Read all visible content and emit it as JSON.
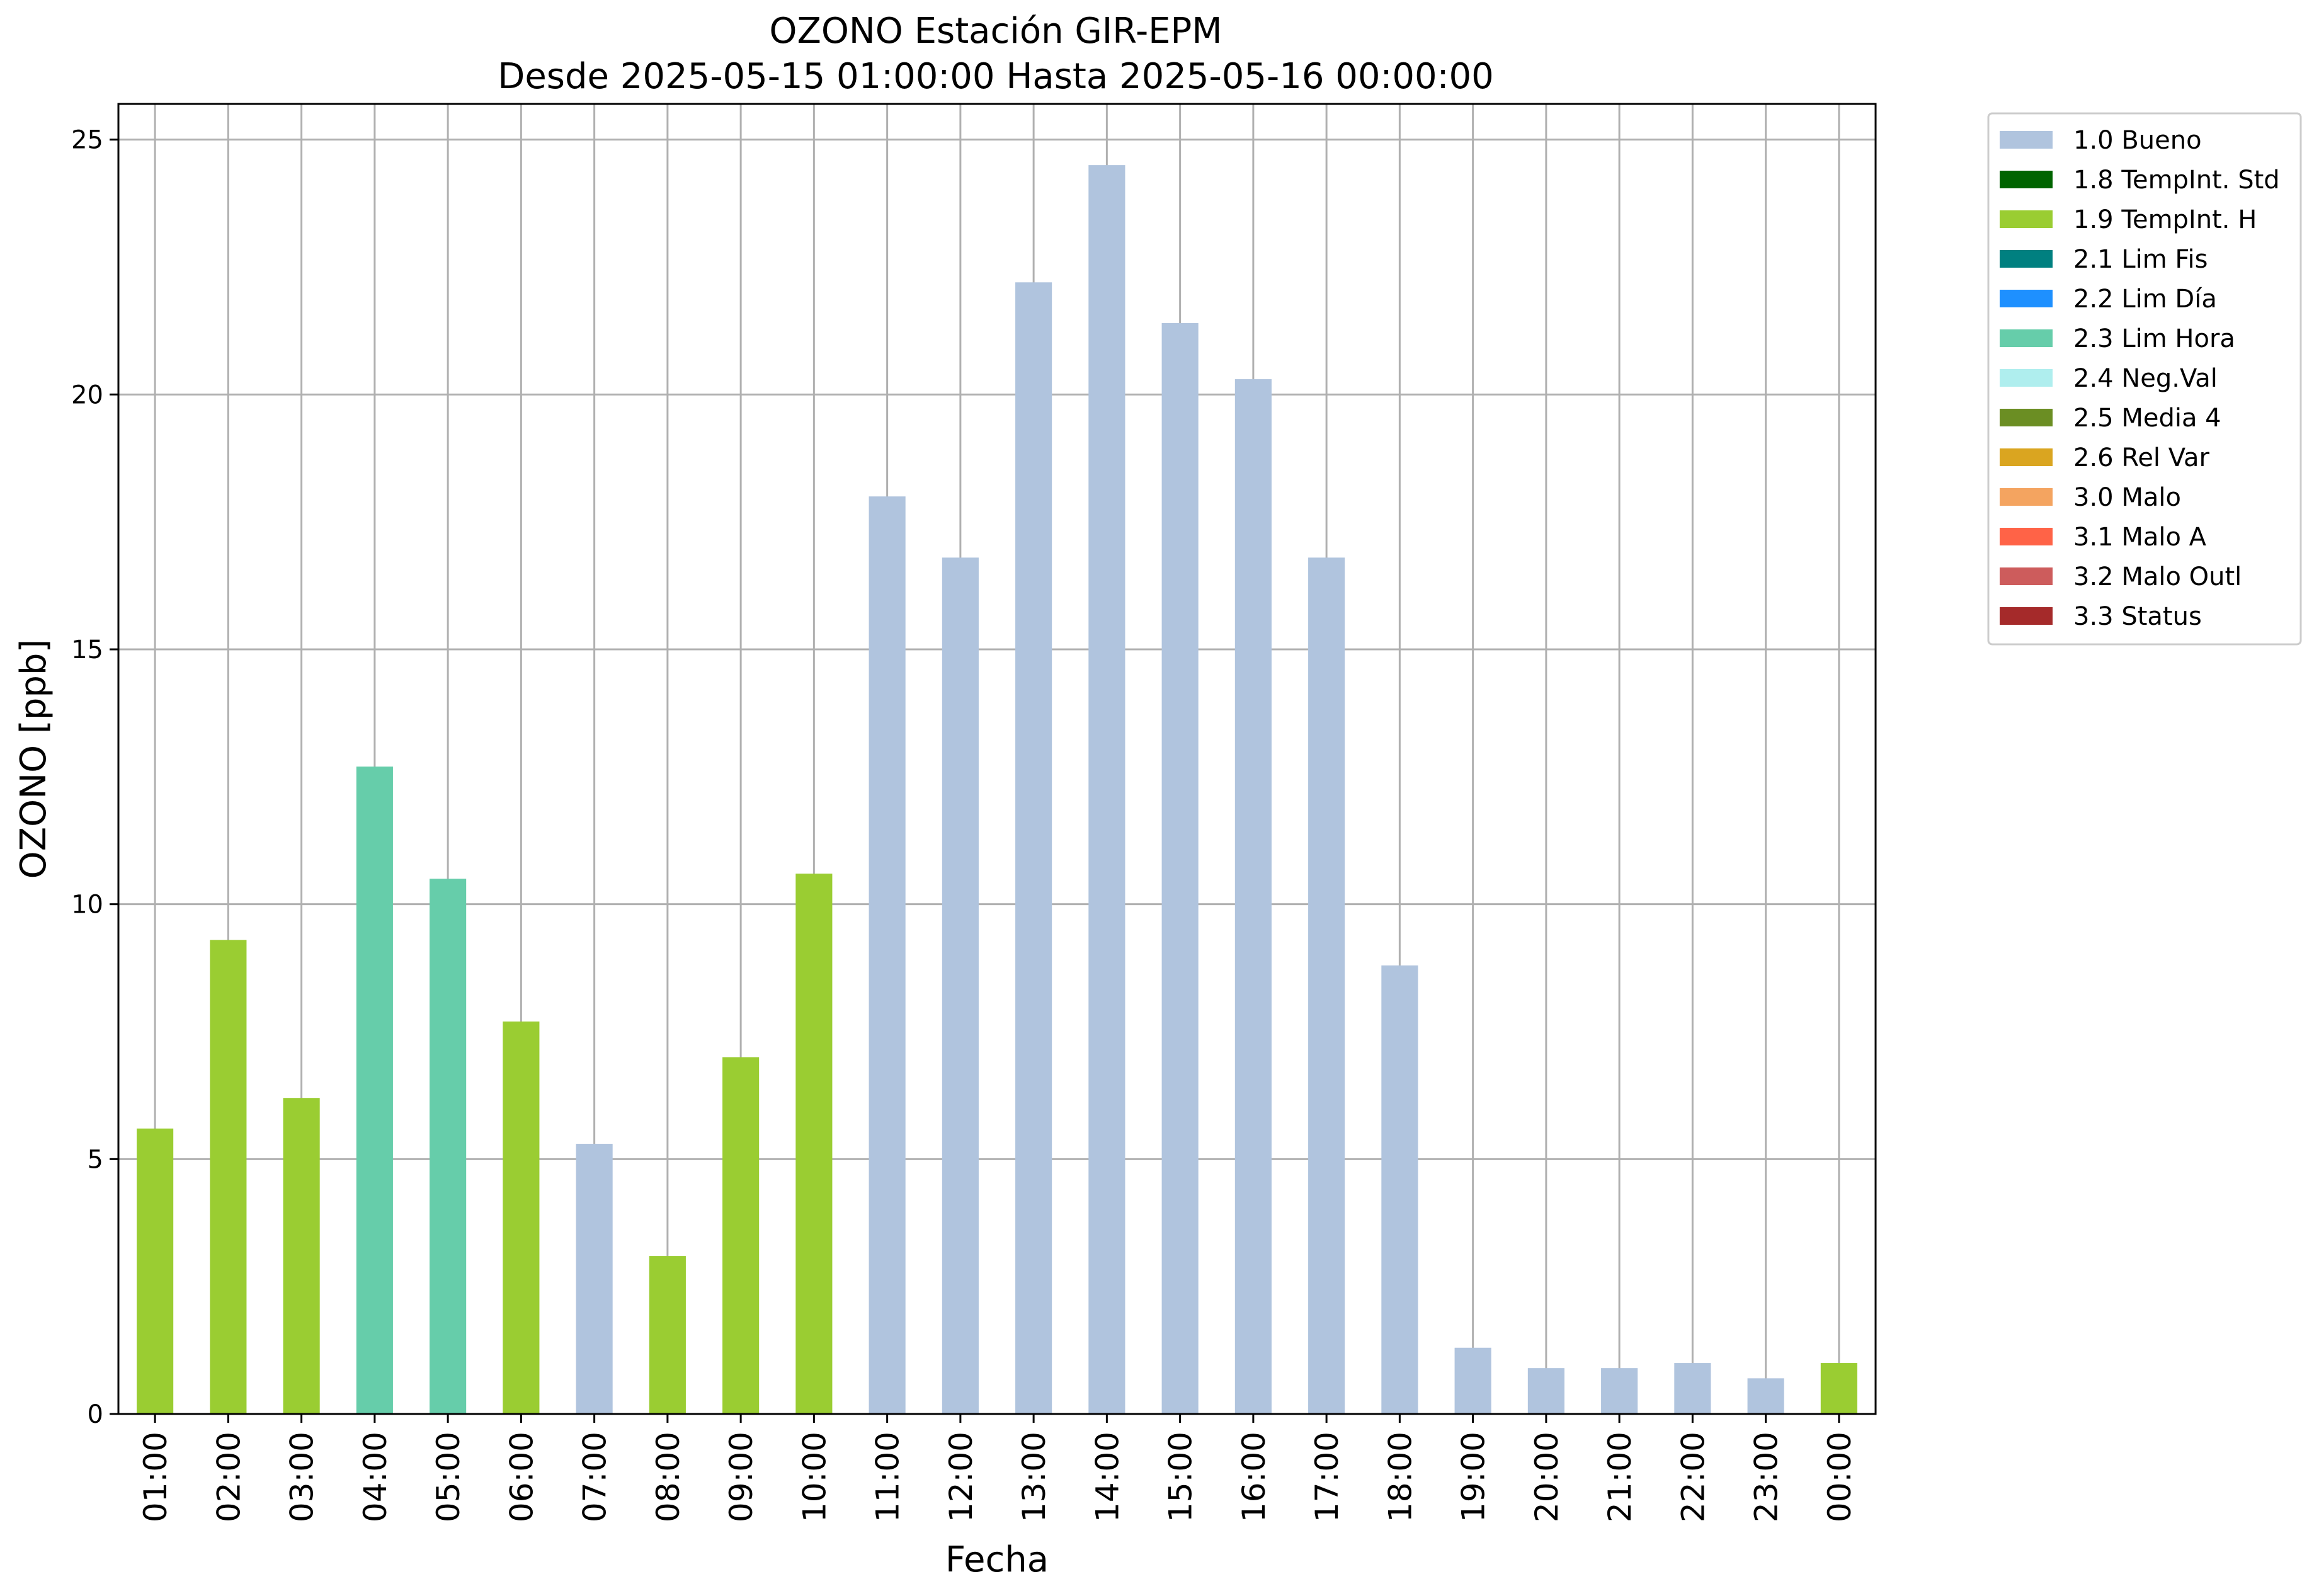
{
  "chart_data": {
    "type": "bar",
    "title": "OZONO Estación GIR-EPM",
    "subtitle": "Desde 2025-05-15 01:00:00 Hasta 2025-05-16 00:00:00",
    "xlabel": "Fecha",
    "ylabel": "OZONO [ppb]",
    "ylim": [
      0,
      25.7
    ],
    "yticks": [
      0,
      5,
      10,
      15,
      20,
      25
    ],
    "grid": true,
    "legend_position": "outside-top-right",
    "categories": [
      "01:00",
      "02:00",
      "03:00",
      "04:00",
      "05:00",
      "06:00",
      "07:00",
      "08:00",
      "09:00",
      "10:00",
      "11:00",
      "12:00",
      "13:00",
      "14:00",
      "15:00",
      "16:00",
      "17:00",
      "18:00",
      "19:00",
      "20:00",
      "21:00",
      "22:00",
      "23:00",
      "00:00"
    ],
    "values": [
      5.6,
      9.3,
      6.2,
      12.7,
      10.5,
      7.7,
      5.3,
      3.1,
      7.0,
      10.6,
      18.0,
      16.8,
      22.2,
      24.5,
      21.4,
      20.3,
      16.8,
      8.8,
      1.3,
      0.9,
      0.9,
      1.0,
      0.7,
      1.0
    ],
    "flags": [
      "1.9 TempInt. H",
      "1.9 TempInt. H",
      "1.9 TempInt. H",
      "2.3 Lim Hora",
      "2.3 Lim Hora",
      "1.9 TempInt. H",
      "1.0 Bueno",
      "1.9 TempInt. H",
      "1.9 TempInt. H",
      "1.9 TempInt. H",
      "1.0 Bueno",
      "1.0 Bueno",
      "1.0 Bueno",
      "1.0 Bueno",
      "1.0 Bueno",
      "1.0 Bueno",
      "1.0 Bueno",
      "1.0 Bueno",
      "1.0 Bueno",
      "1.0 Bueno",
      "1.0 Bueno",
      "1.0 Bueno",
      "1.0 Bueno",
      "1.9 TempInt. H"
    ],
    "legend": [
      {
        "label": "1.0 Bueno",
        "color": "#b0c4de"
      },
      {
        "label": "1.8 TempInt. Std",
        "color": "#006400"
      },
      {
        "label": "1.9 TempInt. H",
        "color": "#9acd32"
      },
      {
        "label": "2.1 Lim Fis",
        "color": "#008080"
      },
      {
        "label": "2.2 Lim Día",
        "color": "#1e90ff"
      },
      {
        "label": "2.3 Lim Hora",
        "color": "#66cdaa"
      },
      {
        "label": "2.4 Neg.Val",
        "color": "#afeeee"
      },
      {
        "label": "2.5 Media 4",
        "color": "#6b8e23"
      },
      {
        "label": "2.6 Rel Var",
        "color": "#daa520"
      },
      {
        "label": "3.0 Malo",
        "color": "#f4a460"
      },
      {
        "label": "3.1 Malo A",
        "color": "#ff6347"
      },
      {
        "label": "3.2 Malo Outl",
        "color": "#cd5c5c"
      },
      {
        "label": "3.3 Status",
        "color": "#a52a2a"
      }
    ]
  }
}
